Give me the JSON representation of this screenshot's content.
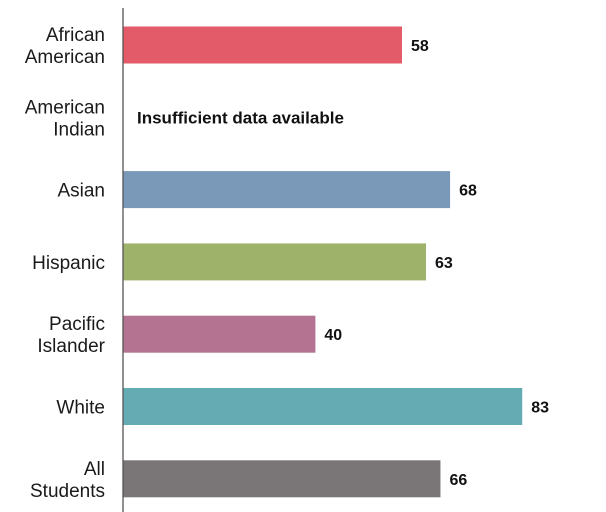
{
  "chart_data": {
    "type": "bar",
    "orientation": "horizontal",
    "title": "",
    "xlabel": "",
    "ylabel": "",
    "xlim": [
      0,
      100
    ],
    "grid": false,
    "legend": "none",
    "categories": [
      [
        "African",
        "American"
      ],
      [
        "American",
        "Indian"
      ],
      [
        "Asian"
      ],
      [
        "Hispanic"
      ],
      [
        "Pacific",
        "Islander"
      ],
      [
        "White"
      ],
      [
        "All",
        "Students"
      ]
    ],
    "values": [
      58,
      null,
      68,
      63,
      40,
      83,
      66
    ],
    "value_labels": [
      "58",
      "",
      "68",
      "63",
      "40",
      "83",
      "66"
    ],
    "colors": [
      "#e35a68",
      "#ffffff",
      "#7a99b8",
      "#9eb26a",
      "#b57392",
      "#64abb4",
      "#7a7677"
    ],
    "annotations": [
      {
        "category_index": 1,
        "text": "Insufficient data available"
      }
    ]
  }
}
